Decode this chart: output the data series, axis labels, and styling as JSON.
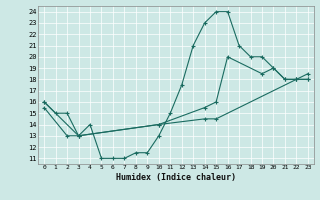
{
  "xlabel": "Humidex (Indice chaleur)",
  "xlim": [
    -0.5,
    23.5
  ],
  "ylim": [
    10.5,
    24.5
  ],
  "xticks": [
    0,
    1,
    2,
    3,
    4,
    5,
    6,
    7,
    8,
    9,
    10,
    11,
    12,
    13,
    14,
    15,
    16,
    17,
    18,
    19,
    20,
    21,
    22,
    23
  ],
  "yticks": [
    11,
    12,
    13,
    14,
    15,
    16,
    17,
    18,
    19,
    20,
    21,
    22,
    23,
    24
  ],
  "bg_color": "#cde8e5",
  "line_color": "#1a6b60",
  "line1_x": [
    0,
    1,
    2,
    3,
    4,
    5,
    6,
    7,
    8,
    9,
    10,
    11,
    12,
    13,
    14,
    15,
    16,
    17,
    18,
    19,
    20,
    21,
    22,
    23
  ],
  "line1_y": [
    16,
    15,
    15,
    13,
    14,
    11,
    11,
    11,
    11.5,
    11.5,
    13,
    15,
    17.5,
    21,
    23,
    24,
    24,
    21,
    20,
    20,
    19,
    18,
    18,
    18
  ],
  "line2_x": [
    0,
    3,
    10,
    14,
    15,
    16,
    19,
    20,
    21,
    22,
    23
  ],
  "line2_y": [
    16,
    13,
    14,
    15.5,
    16,
    20,
    18.5,
    19,
    18,
    18,
    18
  ],
  "line3_x": [
    0,
    2,
    3,
    10,
    14,
    15,
    22,
    23
  ],
  "line3_y": [
    15.5,
    13,
    13,
    14,
    14.5,
    14.5,
    18,
    18.5
  ]
}
